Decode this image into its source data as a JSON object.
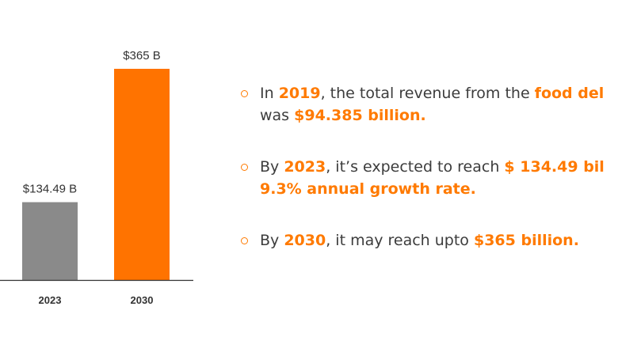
{
  "chart_data": {
    "type": "bar",
    "categories": [
      "2023",
      "2030"
    ],
    "values": [
      134.49,
      365
    ],
    "data_labels": [
      "$134.49 B",
      "$365 B"
    ],
    "colors": [
      "#8a8a8a",
      "#ff7300"
    ],
    "ylim": [
      0,
      365
    ],
    "xlabel": "",
    "ylabel": "",
    "title": ""
  },
  "bullets": [
    {
      "lines": [
        [
          {
            "t": "In ",
            "h": false
          },
          {
            "t": "2019",
            "h": true
          },
          {
            "t": ", the total revenue from the ",
            "h": false
          },
          {
            "t": "food del",
            "h": true
          }
        ],
        [
          {
            "t": "was ",
            "h": false
          },
          {
            "t": "$94.385 billion.",
            "h": true
          }
        ]
      ]
    },
    {
      "lines": [
        [
          {
            "t": "By ",
            "h": false
          },
          {
            "t": "2023",
            "h": true
          },
          {
            "t": ", it’s expected to reach ",
            "h": false
          },
          {
            "t": "$ 134.49 bil",
            "h": true
          }
        ],
        [
          {
            "t": "9.3% annual growth rate.",
            "h": true
          }
        ]
      ]
    },
    {
      "lines": [
        [
          {
            "t": "By ",
            "h": false
          },
          {
            "t": "2030",
            "h": true
          },
          {
            "t": ", it may reach upto ",
            "h": false
          },
          {
            "t": "$365 billion.",
            "h": true
          }
        ]
      ]
    }
  ]
}
